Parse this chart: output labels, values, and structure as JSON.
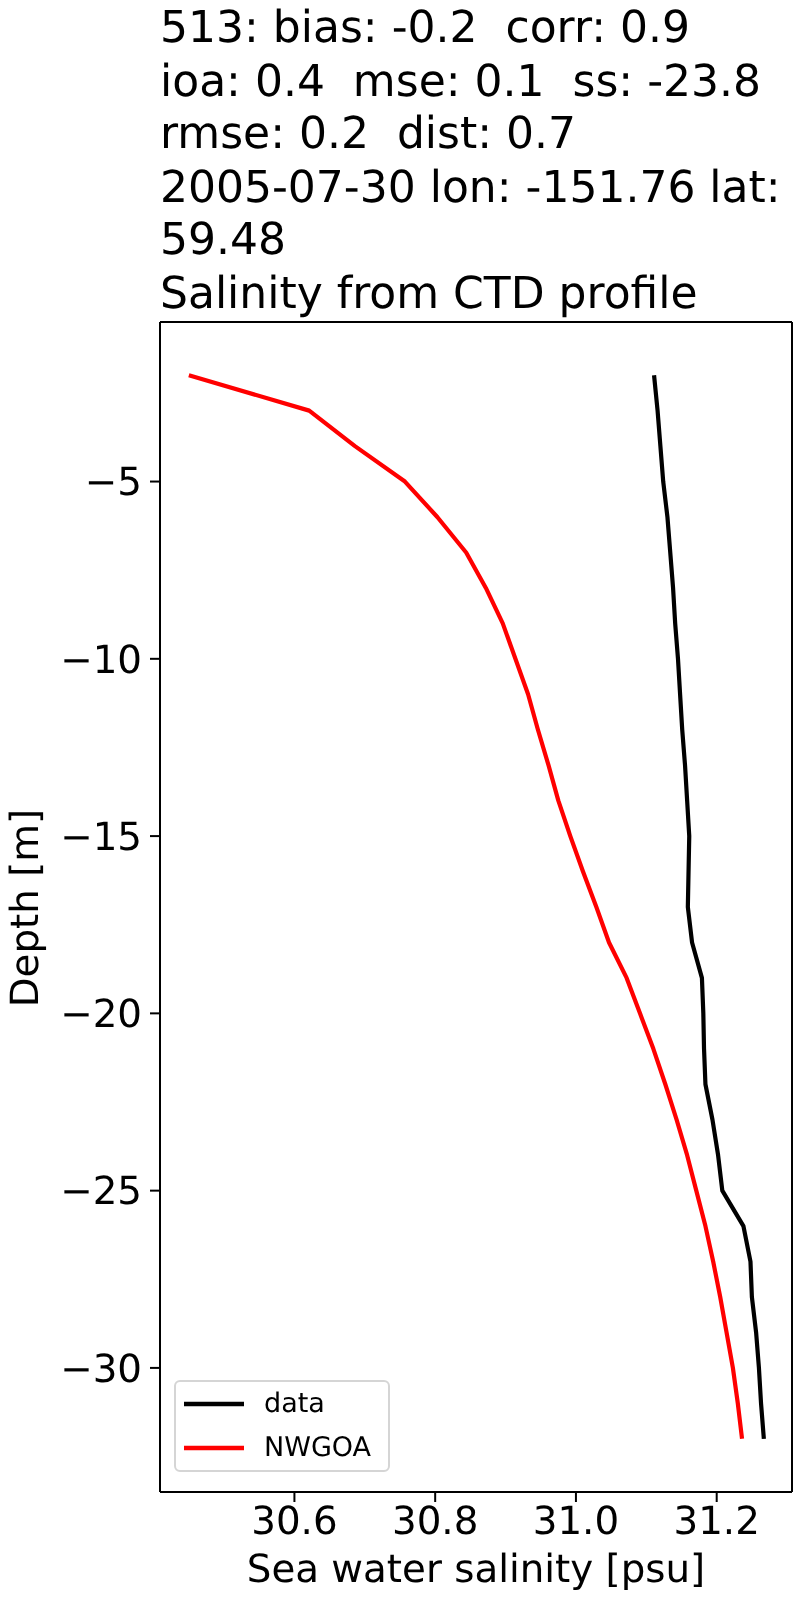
{
  "chart_data": {
    "type": "line",
    "title": "513: bias: -0.2  corr: 0.9\nioa: 0.4  mse: 0.1  ss: -23.8\nrmse: 0.2  dist: 0.7\n2005-07-30 lon: -151.76 lat:\n59.48\nSalinity from CTD profile",
    "xlabel": "Sea water salinity [psu]",
    "ylabel": "Depth [m]",
    "series": [
      {
        "name": "data",
        "color": "#000000",
        "x": [
          31.111,
          31.116,
          31.12,
          31.124,
          31.13,
          31.134,
          31.138,
          31.141,
          31.145,
          31.148,
          31.151,
          31.155,
          31.158,
          31.161,
          31.16,
          31.159,
          31.165,
          31.179,
          31.181,
          31.182,
          31.184,
          31.194,
          31.202,
          31.208,
          31.238,
          31.248,
          31.25,
          31.256,
          31.26,
          31.263,
          31.267
        ],
        "values": [
          -2,
          -3,
          -4,
          -5,
          -6,
          -7,
          -8,
          -9,
          -10,
          -11,
          -12,
          -13,
          -14,
          -15,
          -16,
          -17,
          -18,
          -19,
          -20,
          -21,
          -22,
          -23,
          -24,
          -25,
          -26,
          -27,
          -28,
          -29,
          -30,
          -31,
          -32
        ]
      },
      {
        "name": "NWGOA",
        "color": "#ff0000",
        "x": [
          30.45,
          30.621,
          30.686,
          30.757,
          30.803,
          30.844,
          30.872,
          30.896,
          30.914,
          30.932,
          30.946,
          30.961,
          30.975,
          30.992,
          31.01,
          31.029,
          31.047,
          31.072,
          31.091,
          31.11,
          31.127,
          31.143,
          31.158,
          31.171,
          31.184,
          31.195,
          31.205,
          31.214,
          31.223,
          31.23,
          31.236
        ],
        "values": [
          -2,
          -3,
          -4,
          -5,
          -6,
          -7,
          -8,
          -9,
          -10,
          -11,
          -12,
          -13,
          -14,
          -15,
          -16,
          -17,
          -18,
          -19,
          -20,
          -21,
          -22,
          -23,
          -24,
          -25,
          -26,
          -27,
          -28,
          -29,
          -30,
          -31,
          -32
        ]
      }
    ],
    "xlim": [
      30.409,
      31.307
    ],
    "xticks": [
      30.6,
      30.8,
      {
        "value": 31,
        "label": "31.0"
      },
      31.2
    ],
    "ylim": [
      -33.5,
      -0.5
    ],
    "yticks": [
      {
        "value": -5,
        "label": "−5"
      },
      {
        "value": -10,
        "label": "−10"
      },
      {
        "value": -15,
        "label": "−15"
      },
      {
        "value": -20,
        "label": "−20"
      },
      {
        "value": -25,
        "label": "−25"
      },
      {
        "value": -30,
        "label": "−30"
      }
    ],
    "legend": "bottom left"
  }
}
